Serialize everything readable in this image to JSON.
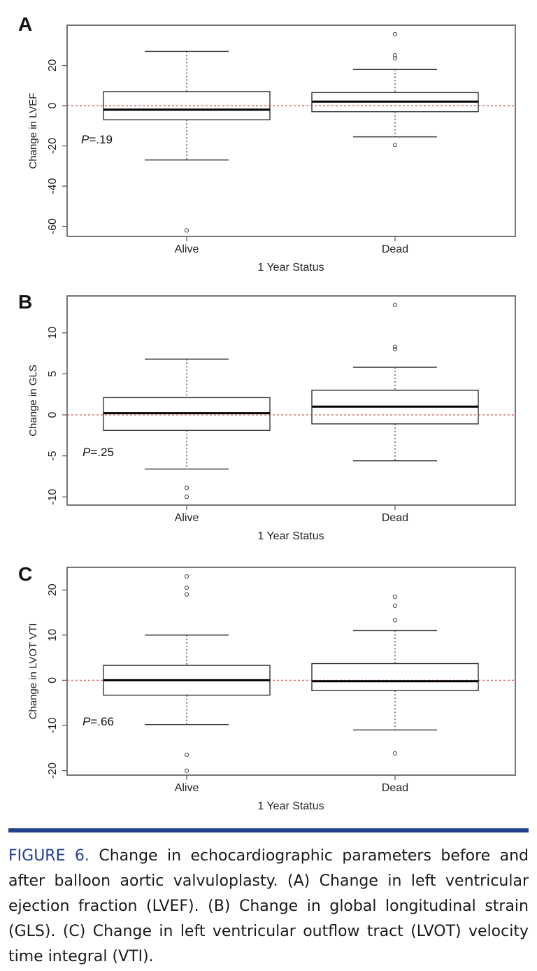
{
  "chart_data": [
    {
      "panel": "A",
      "type": "box",
      "xlabel": "1 Year Status",
      "ylabel": "Change in LVEF",
      "ylim": [
        -65,
        40
      ],
      "yticks": [
        -60,
        -40,
        -20,
        0,
        20
      ],
      "reference_line": 0,
      "annotation": {
        "italic": "P",
        "text": "=.19"
      },
      "groups": [
        {
          "name": "Alive",
          "whisker_low": -27,
          "q1": -7,
          "median": -2,
          "q3": 7,
          "whisker_high": 27,
          "outliers": [
            -62
          ]
        },
        {
          "name": "Dead",
          "whisker_low": -15.5,
          "q1": -3,
          "median": 2,
          "q3": 6.5,
          "whisker_high": 18,
          "outliers": [
            -19.5,
            23.5,
            25,
            35.5
          ]
        }
      ]
    },
    {
      "panel": "B",
      "type": "box",
      "xlabel": "1 Year Status",
      "ylabel": "Change in GLS",
      "ylim": [
        -11,
        14.5
      ],
      "yticks": [
        -10,
        -5,
        0,
        5,
        10
      ],
      "reference_line": 0,
      "annotation": {
        "italic": "P",
        "text": "=.25"
      },
      "groups": [
        {
          "name": "Alive",
          "whisker_low": -6.6,
          "q1": -1.9,
          "median": 0.2,
          "q3": 2.1,
          "whisker_high": 6.8,
          "outliers": [
            -8.9,
            -10
          ]
        },
        {
          "name": "Dead",
          "whisker_low": -5.6,
          "q1": -1.1,
          "median": 1,
          "q3": 3,
          "whisker_high": 5.8,
          "outliers": [
            8,
            8.3,
            13.4
          ]
        }
      ]
    },
    {
      "panel": "C",
      "type": "box",
      "xlabel": "1 Year Status",
      "ylabel": "Change in LVOT VTI",
      "ylim": [
        -21,
        25
      ],
      "yticks": [
        -20,
        -10,
        0,
        10,
        20
      ],
      "reference_line": 0,
      "annotation": {
        "italic": "P",
        "text": "=.66"
      },
      "groups": [
        {
          "name": "Alive",
          "whisker_low": -9.8,
          "q1": -3.3,
          "median": 0,
          "q3": 3.3,
          "whisker_high": 10,
          "outliers": [
            -16.5,
            -20,
            19,
            20.5,
            23
          ]
        },
        {
          "name": "Dead",
          "whisker_low": -11,
          "q1": -2.3,
          "median": -0.2,
          "q3": 3.7,
          "whisker_high": 11,
          "outliers": [
            -16.2,
            13.3,
            16.5,
            18.5
          ]
        }
      ]
    }
  ],
  "caption": {
    "label": "FIGURE 6.",
    "text": " Change in echocardiographic parameters before and after balloon aortic valvuloplasty. (A) Change in left ventricular ejection fraction (LVEF). (B) Change in global longitudinal strain (GLS). (C) Change in left ventricular outflow tract (LVOT) velocity time integral (VTI)."
  },
  "colors": {
    "reference_line": "#e06060",
    "box_stroke": "#333333",
    "median": "#000000",
    "rule": "#23408e"
  }
}
